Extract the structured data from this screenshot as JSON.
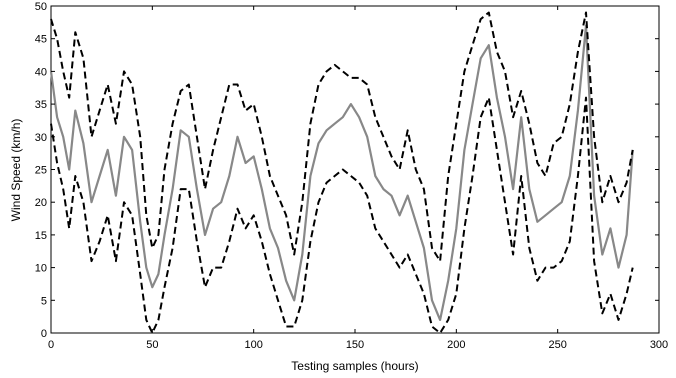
{
  "chart_data": {
    "type": "line",
    "xlabel": "Testing samples (hours)",
    "ylabel": "Wind Speed (km/h)",
    "xlim": [
      0,
      300
    ],
    "ylim": [
      0,
      50
    ],
    "xticks": [
      0,
      50,
      100,
      150,
      200,
      250,
      300
    ],
    "yticks": [
      0,
      5,
      10,
      15,
      20,
      25,
      30,
      35,
      40,
      45,
      50
    ],
    "grid": false,
    "series": [
      {
        "color": "#888888",
        "style": "solid",
        "x": [
          0,
          3,
          6,
          9,
          12,
          16,
          20,
          24,
          28,
          32,
          36,
          40,
          44,
          47,
          50,
          53,
          56,
          60,
          64,
          68,
          72,
          76,
          80,
          84,
          88,
          92,
          96,
          100,
          104,
          108,
          112,
          116,
          120,
          124,
          128,
          132,
          136,
          140,
          144,
          148,
          152,
          156,
          160,
          164,
          168,
          172,
          176,
          180,
          184,
          188,
          192,
          196,
          200,
          204,
          208,
          212,
          216,
          220,
          224,
          228,
          232,
          236,
          240,
          244,
          248,
          252,
          256,
          260,
          264,
          268,
          272,
          276,
          280,
          284,
          287
        ],
        "y": [
          40,
          33,
          30,
          25,
          34,
          29,
          20,
          24,
          28,
          21,
          30,
          28,
          17,
          10,
          7,
          9,
          15,
          22,
          31,
          30,
          22,
          15,
          19,
          20,
          24,
          30,
          26,
          27,
          22,
          16,
          13,
          8,
          5,
          12,
          24,
          29,
          31,
          32,
          33,
          35,
          33,
          30,
          24,
          22,
          21,
          18,
          21,
          17,
          13,
          5,
          2,
          8,
          16,
          28,
          35,
          42,
          44,
          36,
          30,
          22,
          33,
          22,
          17,
          18,
          19,
          20,
          24,
          34,
          47,
          21,
          12,
          16,
          10,
          15,
          28
        ]
      },
      {
        "color": "#000000",
        "style": "dashed",
        "x": [
          0,
          3,
          6,
          9,
          12,
          16,
          20,
          24,
          28,
          32,
          36,
          40,
          44,
          47,
          50,
          53,
          56,
          60,
          64,
          68,
          72,
          76,
          80,
          84,
          88,
          92,
          96,
          100,
          104,
          108,
          112,
          116,
          120,
          124,
          128,
          132,
          136,
          140,
          144,
          148,
          152,
          156,
          160,
          164,
          168,
          172,
          176,
          180,
          184,
          188,
          192,
          196,
          200,
          204,
          208,
          212,
          216,
          220,
          224,
          228,
          232,
          236,
          240,
          244,
          248,
          252,
          256,
          260,
          264,
          268,
          272,
          276,
          280,
          284,
          287
        ],
        "y": [
          48,
          45,
          40,
          36,
          46,
          42,
          30,
          34,
          38,
          32,
          40,
          38,
          30,
          18,
          13,
          15,
          25,
          32,
          37,
          38,
          30,
          22,
          28,
          33,
          38,
          38,
          34,
          35,
          30,
          24,
          21,
          18,
          12,
          20,
          32,
          38,
          40,
          41,
          40,
          39,
          39,
          38,
          33,
          30,
          27,
          25,
          31,
          25,
          22,
          13,
          11,
          24,
          32,
          40,
          44,
          48,
          49,
          43,
          40,
          33,
          37,
          32,
          26,
          24,
          29,
          30,
          35,
          43,
          49,
          30,
          20,
          24,
          20,
          23,
          28
        ]
      },
      {
        "color": "#000000",
        "style": "dashed",
        "x": [
          0,
          3,
          6,
          9,
          12,
          16,
          20,
          24,
          28,
          32,
          36,
          40,
          44,
          47,
          50,
          53,
          56,
          60,
          64,
          68,
          72,
          76,
          80,
          84,
          88,
          92,
          96,
          100,
          104,
          108,
          112,
          116,
          120,
          124,
          128,
          132,
          136,
          140,
          144,
          148,
          152,
          156,
          160,
          164,
          168,
          172,
          176,
          180,
          184,
          188,
          192,
          196,
          200,
          204,
          208,
          212,
          216,
          220,
          224,
          228,
          232,
          236,
          240,
          244,
          248,
          252,
          256,
          260,
          264,
          268,
          272,
          276,
          280,
          284,
          287
        ],
        "y": [
          32,
          26,
          22,
          16,
          24,
          20,
          11,
          14,
          18,
          11,
          20,
          18,
          9,
          2,
          0,
          2,
          7,
          13,
          22,
          22,
          14,
          7,
          10,
          10,
          14,
          19,
          16,
          18,
          14,
          9,
          5,
          1,
          1,
          5,
          14,
          20,
          23,
          24,
          25,
          24,
          23,
          21,
          16,
          14,
          12,
          10,
          12,
          9,
          6,
          1,
          0,
          2,
          6,
          16,
          24,
          33,
          36,
          28,
          20,
          12,
          24,
          13,
          8,
          10,
          10,
          11,
          14,
          24,
          36,
          11,
          3,
          6,
          2,
          6,
          10
        ]
      }
    ]
  }
}
